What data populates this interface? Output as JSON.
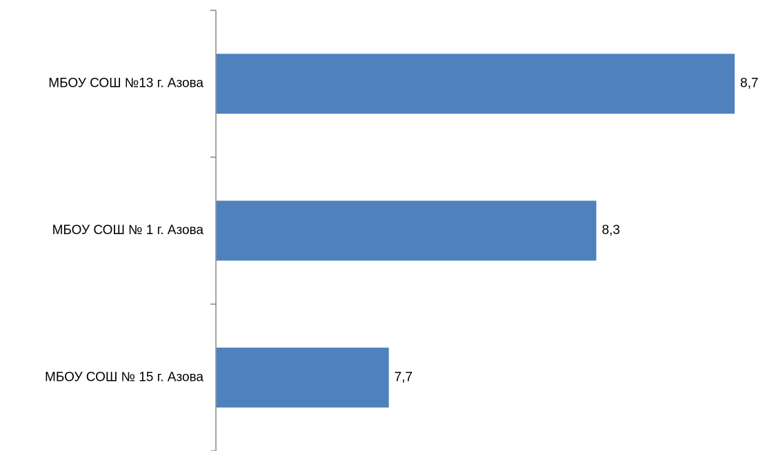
{
  "chart_data": {
    "type": "bar",
    "orientation": "horizontal",
    "categories": [
      "МБОУ СОШ №13 г. Азова",
      "МБОУ СОШ № 1 г. Азова",
      "МБОУ СОШ № 15 г. Азова"
    ],
    "values": [
      8.7,
      8.3,
      7.7
    ],
    "value_labels": [
      "8,7",
      "8,3",
      "7,7"
    ],
    "title": "",
    "xlabel": "",
    "ylabel": "",
    "xlim": [
      7.2,
      8.7
    ],
    "grid": false,
    "legend": "none",
    "colors": {
      "bar": "#4F81BD",
      "axis": "#868686"
    }
  }
}
